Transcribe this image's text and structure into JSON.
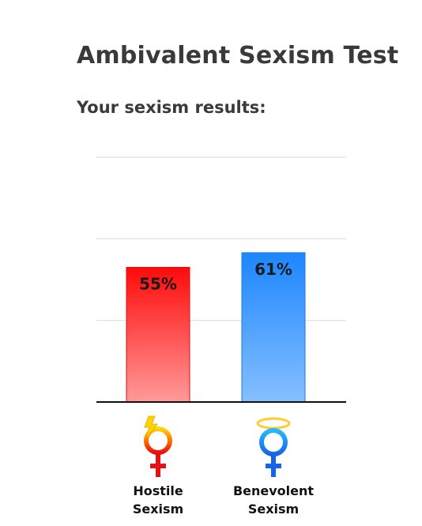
{
  "page": {
    "title": "Ambivalent Sexism Test",
    "subtitle": "Your sexism results:"
  },
  "chart_data": {
    "type": "bar",
    "categories": [
      "Hostile Sexism",
      "Benevolent Sexism"
    ],
    "category_label_lines": [
      [
        "Hostile",
        "Sexism"
      ],
      [
        "Benevolent",
        "Sexism"
      ]
    ],
    "values": [
      55,
      61
    ],
    "value_labels": [
      "55%",
      "61%"
    ],
    "ylim": [
      0,
      100
    ],
    "grid": true,
    "gridlines": [
      33.3,
      66.7,
      100
    ],
    "bar_colors": [
      {
        "top": "#ff0a0a",
        "bottom": "#ff9a9a",
        "border": "#e01010"
      },
      {
        "top": "#1c86ff",
        "bottom": "#86bfff",
        "border": "#1a7ae8"
      }
    ],
    "category_icons": [
      "hostile-sexism-female-symbol-icon",
      "benevolent-sexism-female-symbol-icon"
    ]
  }
}
